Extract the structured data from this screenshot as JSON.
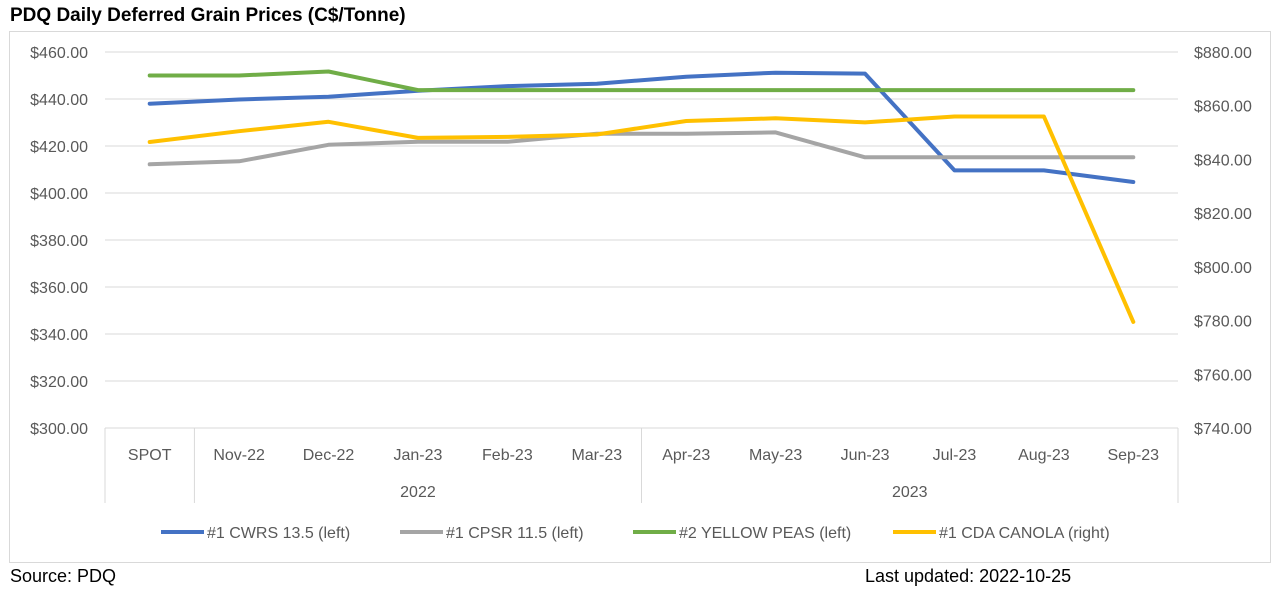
{
  "title": "PDQ Daily Deferred Grain Prices (C$/Tonne)",
  "footer": {
    "source": "Source: PDQ",
    "last_updated": "Last updated:  2022-10-25"
  },
  "chart_data": {
    "type": "line",
    "categories": [
      "SPOT",
      "Nov-22",
      "Dec-22",
      "Jan-23",
      "Feb-23",
      "Mar-23",
      "Apr-23",
      "May-23",
      "Jun-23",
      "Jul-23",
      "Aug-23",
      "Sep-23"
    ],
    "year_groups": [
      {
        "label": "2022",
        "start": 1,
        "end": 5
      },
      {
        "label": "2023",
        "start": 6,
        "end": 11
      }
    ],
    "y_left": {
      "min": 300,
      "max": 460,
      "step": 20,
      "tick_labels": [
        "$300.00",
        "$320.00",
        "$340.00",
        "$360.00",
        "$380.00",
        "$400.00",
        "$420.00",
        "$440.00",
        "$460.00"
      ]
    },
    "y_right": {
      "min": 740,
      "max": 880,
      "step": 20,
      "tick_labels": [
        "$740.00",
        "$760.00",
        "$780.00",
        "$800.00",
        "$820.00",
        "$840.00",
        "$860.00",
        "$880.00"
      ]
    },
    "grid": true,
    "legend_position": "bottom",
    "series": [
      {
        "name": "#1 CWRS 13.5 (left)",
        "axis": "left",
        "color": "#4472c4",
        "values": [
          438,
          439.8,
          441,
          443.5,
          445.5,
          446.5,
          449.5,
          451.2,
          450.8,
          409.6,
          409.6,
          404.7
        ]
      },
      {
        "name": "#1 CPSR 11.5 (left)",
        "axis": "left",
        "color": "#a5a5a5",
        "values": [
          412.2,
          413.5,
          420.5,
          421.8,
          421.8,
          425.2,
          425.2,
          425.8,
          415.2,
          415.2,
          415.2,
          415.2
        ]
      },
      {
        "name": "#2 YELLOW PEAS (left)",
        "axis": "left",
        "color": "#70ad47",
        "values": [
          450,
          450,
          451.7,
          443.8,
          443.8,
          443.8,
          443.8,
          443.8,
          443.8,
          443.8,
          443.8,
          443.8
        ]
      },
      {
        "name": "#1 CDA CANOLA (right)",
        "axis": "right",
        "color": "#ffc000",
        "values": [
          846.5,
          850.5,
          854,
          848,
          848.4,
          849.3,
          854.3,
          855.3,
          853.8,
          856,
          856,
          779.5
        ]
      }
    ]
  }
}
